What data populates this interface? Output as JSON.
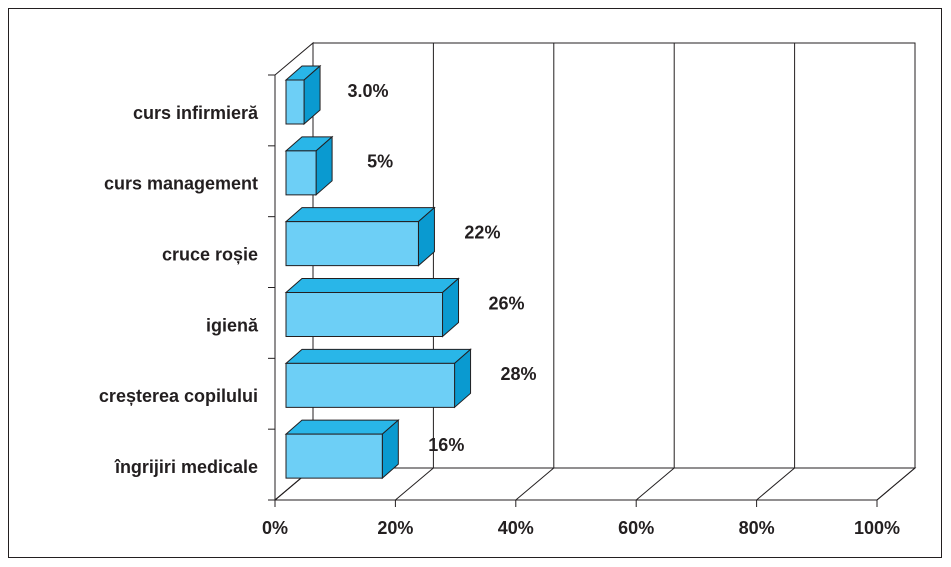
{
  "chart_data": {
    "type": "bar3d_horizontal",
    "categories": [
      "curs infirmieră",
      "curs management",
      "cruce roșie",
      "igienă",
      "creșterea copilului",
      "îngrijiri medicale"
    ],
    "values": [
      3,
      5,
      22,
      26,
      28,
      16
    ],
    "value_labels": [
      "3.0%",
      "5%",
      "22%",
      "26%",
      "28%",
      "16%"
    ],
    "color": "#6dcff6",
    "xlim": [
      0,
      100
    ],
    "xticks": [
      {
        "value": 0,
        "label": "0%"
      },
      {
        "value": 20,
        "label": "20%"
      },
      {
        "value": 40,
        "label": "40%"
      },
      {
        "value": 60,
        "label": "60%"
      },
      {
        "value": 80,
        "label": "80%"
      },
      {
        "value": 100,
        "label": "100%"
      }
    ],
    "grid": true
  }
}
